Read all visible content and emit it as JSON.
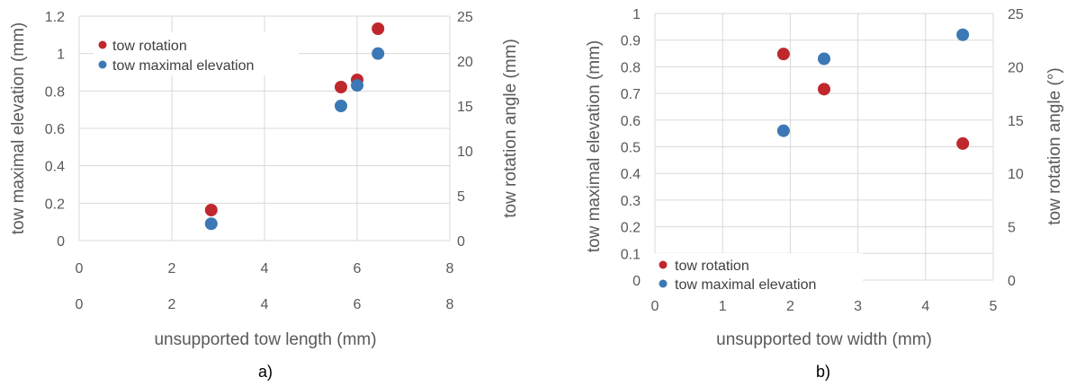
{
  "chart_data": [
    {
      "type": "scatter",
      "caption": "a)",
      "xlabel": "unsupported tow length (mm)",
      "ylabel": "tow maximal elevation (mm)",
      "y2label": "tow rotation angle (mm)",
      "xlim": [
        0,
        8
      ],
      "x_ticks": [
        0,
        2,
        4,
        6,
        8
      ],
      "x_tick_labels": [
        "0",
        "2",
        "4",
        "6",
        "8"
      ],
      "x_tick_labels_ghost": [
        "0",
        "2",
        "4",
        "6",
        "8"
      ],
      "ylim": [
        0,
        1.2
      ],
      "y_ticks": [
        0,
        0.2,
        0.4,
        0.6,
        0.8,
        1,
        1.2
      ],
      "y_tick_labels": [
        "0",
        "0.2",
        "0.4",
        "0.6",
        "0.8",
        "1",
        "1.2"
      ],
      "y2lim": [
        0,
        25
      ],
      "y2_ticks": [
        0,
        5,
        10,
        15,
        20,
        25
      ],
      "y2_tick_labels": [
        "0",
        "5",
        "10",
        "15",
        "20",
        "25"
      ],
      "grid": true,
      "legend_position": "top-left",
      "series": [
        {
          "name": "tow rotation",
          "color": "#c0272d",
          "axis": "secondary",
          "x": [
            2.85,
            5.65,
            6.0,
            6.45
          ],
          "y": [
            3.4,
            17.1,
            17.9,
            23.6
          ]
        },
        {
          "name": "tow maximal elevation",
          "color": "#3c78b5",
          "axis": "primary",
          "x": [
            2.85,
            5.65,
            6.0,
            6.45
          ],
          "y": [
            0.09,
            0.72,
            0.83,
            1.0
          ]
        }
      ]
    },
    {
      "type": "scatter",
      "caption": "b)",
      "xlabel": "unsupported tow width (mm)",
      "ylabel": "tow maximal elevation (mm)",
      "y2label": "tow rotation angle (°)",
      "xlim": [
        0,
        5
      ],
      "x_ticks": [
        0,
        1,
        2,
        3,
        4,
        5
      ],
      "x_tick_labels": [
        "0",
        "1",
        "2",
        "3",
        "4",
        "5"
      ],
      "ylim": [
        0,
        1
      ],
      "y_ticks": [
        0,
        0.1,
        0.2,
        0.3,
        0.4,
        0.5,
        0.6,
        0.7,
        0.8,
        0.9,
        1
      ],
      "y_tick_labels": [
        "0",
        "0.1",
        "0.2",
        "0.3",
        "0.4",
        "0.5",
        "0.6",
        "0.7",
        "0.8",
        "0.9",
        "1"
      ],
      "y2lim": [
        0,
        25
      ],
      "y2_ticks": [
        0,
        5,
        10,
        15,
        20,
        25
      ],
      "y2_tick_labels": [
        "0",
        "5",
        "10",
        "15",
        "20",
        "25"
      ],
      "grid": true,
      "legend_position": "bottom-left",
      "series": [
        {
          "name": "tow rotation",
          "color": "#c0272d",
          "axis": "secondary",
          "x": [
            1.9,
            2.5,
            4.55
          ],
          "y": [
            21.2,
            17.9,
            12.8
          ]
        },
        {
          "name": "tow maximal elevation",
          "color": "#3c78b5",
          "axis": "primary",
          "x": [
            1.9,
            2.5,
            4.55
          ],
          "y": [
            0.56,
            0.83,
            0.92
          ]
        }
      ]
    }
  ]
}
